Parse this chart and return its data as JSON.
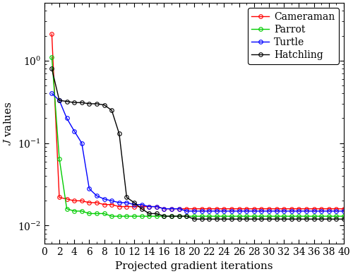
{
  "title": "",
  "xlabel": "Projected gradient iterations",
  "ylabel": "$J$ values",
  "xlim": [
    0,
    40
  ],
  "xticks": [
    0,
    2,
    4,
    6,
    8,
    10,
    12,
    14,
    16,
    18,
    20,
    22,
    24,
    26,
    28,
    30,
    32,
    34,
    36,
    38,
    40
  ],
  "ylim_low": 0.006,
  "ylim_high": 5.0,
  "series": {
    "Cameraman": {
      "color": "#ff0000",
      "x": [
        1,
        2,
        3,
        4,
        5,
        6,
        7,
        8,
        9,
        10,
        11,
        12,
        13,
        14,
        15,
        16,
        17,
        18,
        19,
        20,
        21,
        22,
        23,
        24,
        25,
        26,
        27,
        28,
        29,
        30,
        31,
        32,
        33,
        34,
        35,
        36,
        37,
        38,
        39,
        40
      ],
      "y": [
        2.1,
        0.022,
        0.021,
        0.02,
        0.02,
        0.019,
        0.019,
        0.018,
        0.018,
        0.017,
        0.017,
        0.017,
        0.017,
        0.017,
        0.017,
        0.016,
        0.016,
        0.016,
        0.016,
        0.016,
        0.016,
        0.016,
        0.016,
        0.016,
        0.016,
        0.016,
        0.016,
        0.016,
        0.016,
        0.016,
        0.016,
        0.016,
        0.016,
        0.016,
        0.016,
        0.016,
        0.016,
        0.016,
        0.016,
        0.016
      ]
    },
    "Parrot": {
      "color": "#00cc00",
      "x": [
        1,
        2,
        3,
        4,
        5,
        6,
        7,
        8,
        9,
        10,
        11,
        12,
        13,
        14,
        15,
        16,
        17,
        18,
        19,
        20,
        21,
        22,
        23,
        24,
        25,
        26,
        27,
        28,
        29,
        30,
        31,
        32,
        33,
        34,
        35,
        36,
        37,
        38,
        39,
        40
      ],
      "y": [
        1.1,
        0.065,
        0.016,
        0.015,
        0.015,
        0.014,
        0.014,
        0.014,
        0.013,
        0.013,
        0.013,
        0.013,
        0.013,
        0.013,
        0.013,
        0.013,
        0.013,
        0.013,
        0.013,
        0.013,
        0.013,
        0.013,
        0.013,
        0.013,
        0.013,
        0.013,
        0.013,
        0.013,
        0.013,
        0.013,
        0.013,
        0.013,
        0.013,
        0.013,
        0.013,
        0.013,
        0.013,
        0.013,
        0.013,
        0.013
      ]
    },
    "Turtle": {
      "color": "#0000ff",
      "x": [
        1,
        2,
        3,
        4,
        5,
        6,
        7,
        8,
        9,
        10,
        11,
        12,
        13,
        14,
        15,
        16,
        17,
        18,
        19,
        20,
        21,
        22,
        23,
        24,
        25,
        26,
        27,
        28,
        29,
        30,
        31,
        32,
        33,
        34,
        35,
        36,
        37,
        38,
        39,
        40
      ],
      "y": [
        0.4,
        0.33,
        0.2,
        0.14,
        0.1,
        0.028,
        0.023,
        0.021,
        0.02,
        0.019,
        0.019,
        0.018,
        0.018,
        0.017,
        0.017,
        0.016,
        0.016,
        0.016,
        0.015,
        0.015,
        0.015,
        0.015,
        0.015,
        0.015,
        0.015,
        0.015,
        0.015,
        0.015,
        0.015,
        0.015,
        0.015,
        0.015,
        0.015,
        0.015,
        0.015,
        0.015,
        0.015,
        0.015,
        0.015,
        0.015
      ]
    },
    "Hatchling": {
      "color": "#000000",
      "x": [
        1,
        2,
        3,
        4,
        5,
        6,
        7,
        8,
        9,
        10,
        11,
        12,
        13,
        14,
        15,
        16,
        17,
        18,
        19,
        20,
        21,
        22,
        23,
        24,
        25,
        26,
        27,
        28,
        29,
        30,
        31,
        32,
        33,
        34,
        35,
        36,
        37,
        38,
        39,
        40
      ],
      "y": [
        0.8,
        0.33,
        0.32,
        0.31,
        0.31,
        0.3,
        0.3,
        0.29,
        0.25,
        0.13,
        0.022,
        0.019,
        0.016,
        0.014,
        0.014,
        0.013,
        0.013,
        0.013,
        0.013,
        0.012,
        0.012,
        0.012,
        0.012,
        0.012,
        0.012,
        0.012,
        0.012,
        0.012,
        0.012,
        0.012,
        0.012,
        0.012,
        0.012,
        0.012,
        0.012,
        0.012,
        0.012,
        0.012,
        0.012,
        0.012
      ]
    }
  },
  "legend_order": [
    "Cameraman",
    "Parrot",
    "Turtle",
    "Hatchling"
  ],
  "background_color": "#ffffff",
  "tick_labelsize": 10,
  "axis_labelsize": 11,
  "legend_fontsize": 10,
  "linewidth": 1.0,
  "markersize": 4
}
